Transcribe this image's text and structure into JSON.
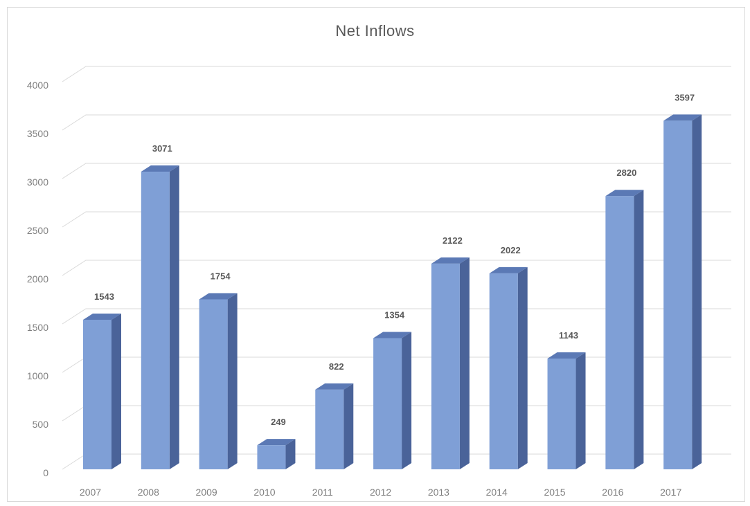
{
  "chart_data": {
    "type": "bar",
    "title": "Net Inflows",
    "categories": [
      "2007",
      "2008",
      "2009",
      "2010",
      "2011",
      "2012",
      "2013",
      "2014",
      "2015",
      "2016",
      "2017"
    ],
    "series": [
      {
        "values": [
          1543,
          3071,
          1754,
          249,
          822,
          1354,
          2122,
          2022,
          1143,
          2820,
          3597
        ]
      }
    ],
    "yticks": [
      "0",
      "500",
      "1000",
      "1500",
      "2000",
      "2500",
      "3000",
      "3500",
      "4000"
    ],
    "ylim": [
      0,
      4000
    ],
    "xlabel": "",
    "ylabel": "",
    "grid": true,
    "legend": "none",
    "style": "3d-column",
    "colors": {
      "bar_front": "#7f9fd6",
      "bar_side": "#4a6399",
      "bar_top": "#5b79b5",
      "grid": "#d9d9d9"
    }
  }
}
